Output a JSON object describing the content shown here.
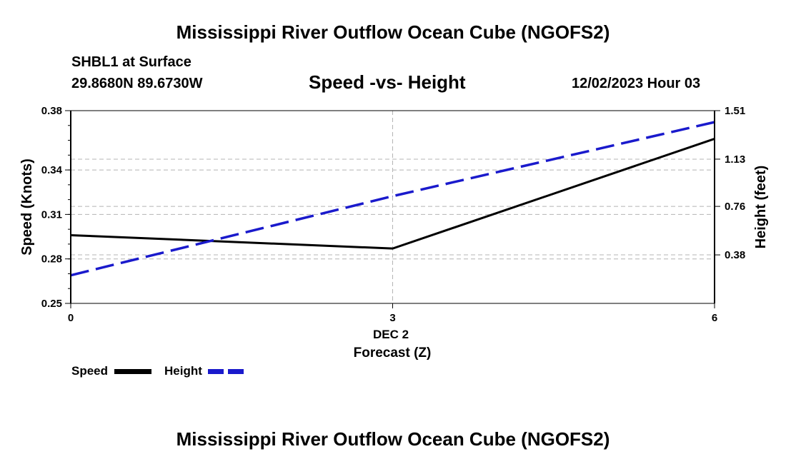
{
  "header": {
    "title": "Mississippi River Outflow Ocean Cube (NGOFS2)",
    "station": "SHBL1 at Surface",
    "location": "29.8680N  89.6730W",
    "plot_title": "Speed -vs- Height",
    "datetime": "12/02/2023 Hour 03"
  },
  "footer": {
    "title": "Mississippi River Outflow Ocean Cube (NGOFS2)"
  },
  "legend": {
    "speed_label": "Speed",
    "height_label": "Height"
  },
  "colors": {
    "speed": "#000000",
    "height": "#1a1acc",
    "grid": "#b4b4b4"
  },
  "chart_data": {
    "type": "line",
    "title": "Speed -vs- Height",
    "xlabel": "Forecast (Z)",
    "x_date_label": "DEC 2",
    "x": [
      0,
      3,
      6
    ],
    "x_tick_labels": [
      "0",
      "3",
      "6"
    ],
    "xlim": [
      0,
      6
    ],
    "y_left": {
      "label": "Speed (Knots)",
      "lim": [
        0.25,
        0.38
      ],
      "ticks": [
        0.25,
        0.28,
        0.31,
        0.34,
        0.38
      ],
      "tick_labels": [
        "0.25",
        "0.28",
        "0.31",
        "0.34",
        "0.38"
      ]
    },
    "y_right": {
      "label": "Height (feet)",
      "lim": [
        0.0,
        1.51
      ],
      "ticks": [
        0.38,
        0.76,
        1.13,
        1.51
      ],
      "tick_labels": [
        "0.38",
        "0.76",
        "1.13",
        "1.51"
      ]
    },
    "series": [
      {
        "name": "Speed",
        "axis": "left",
        "style": "solid",
        "x": [
          0,
          3,
          6
        ],
        "values": [
          0.296,
          0.287,
          0.361
        ]
      },
      {
        "name": "Height",
        "axis": "right",
        "style": "dashed",
        "x": [
          0,
          3,
          6
        ],
        "values": [
          0.22,
          0.84,
          1.42
        ]
      }
    ],
    "legend_position": "bottom-left",
    "grid": true
  }
}
